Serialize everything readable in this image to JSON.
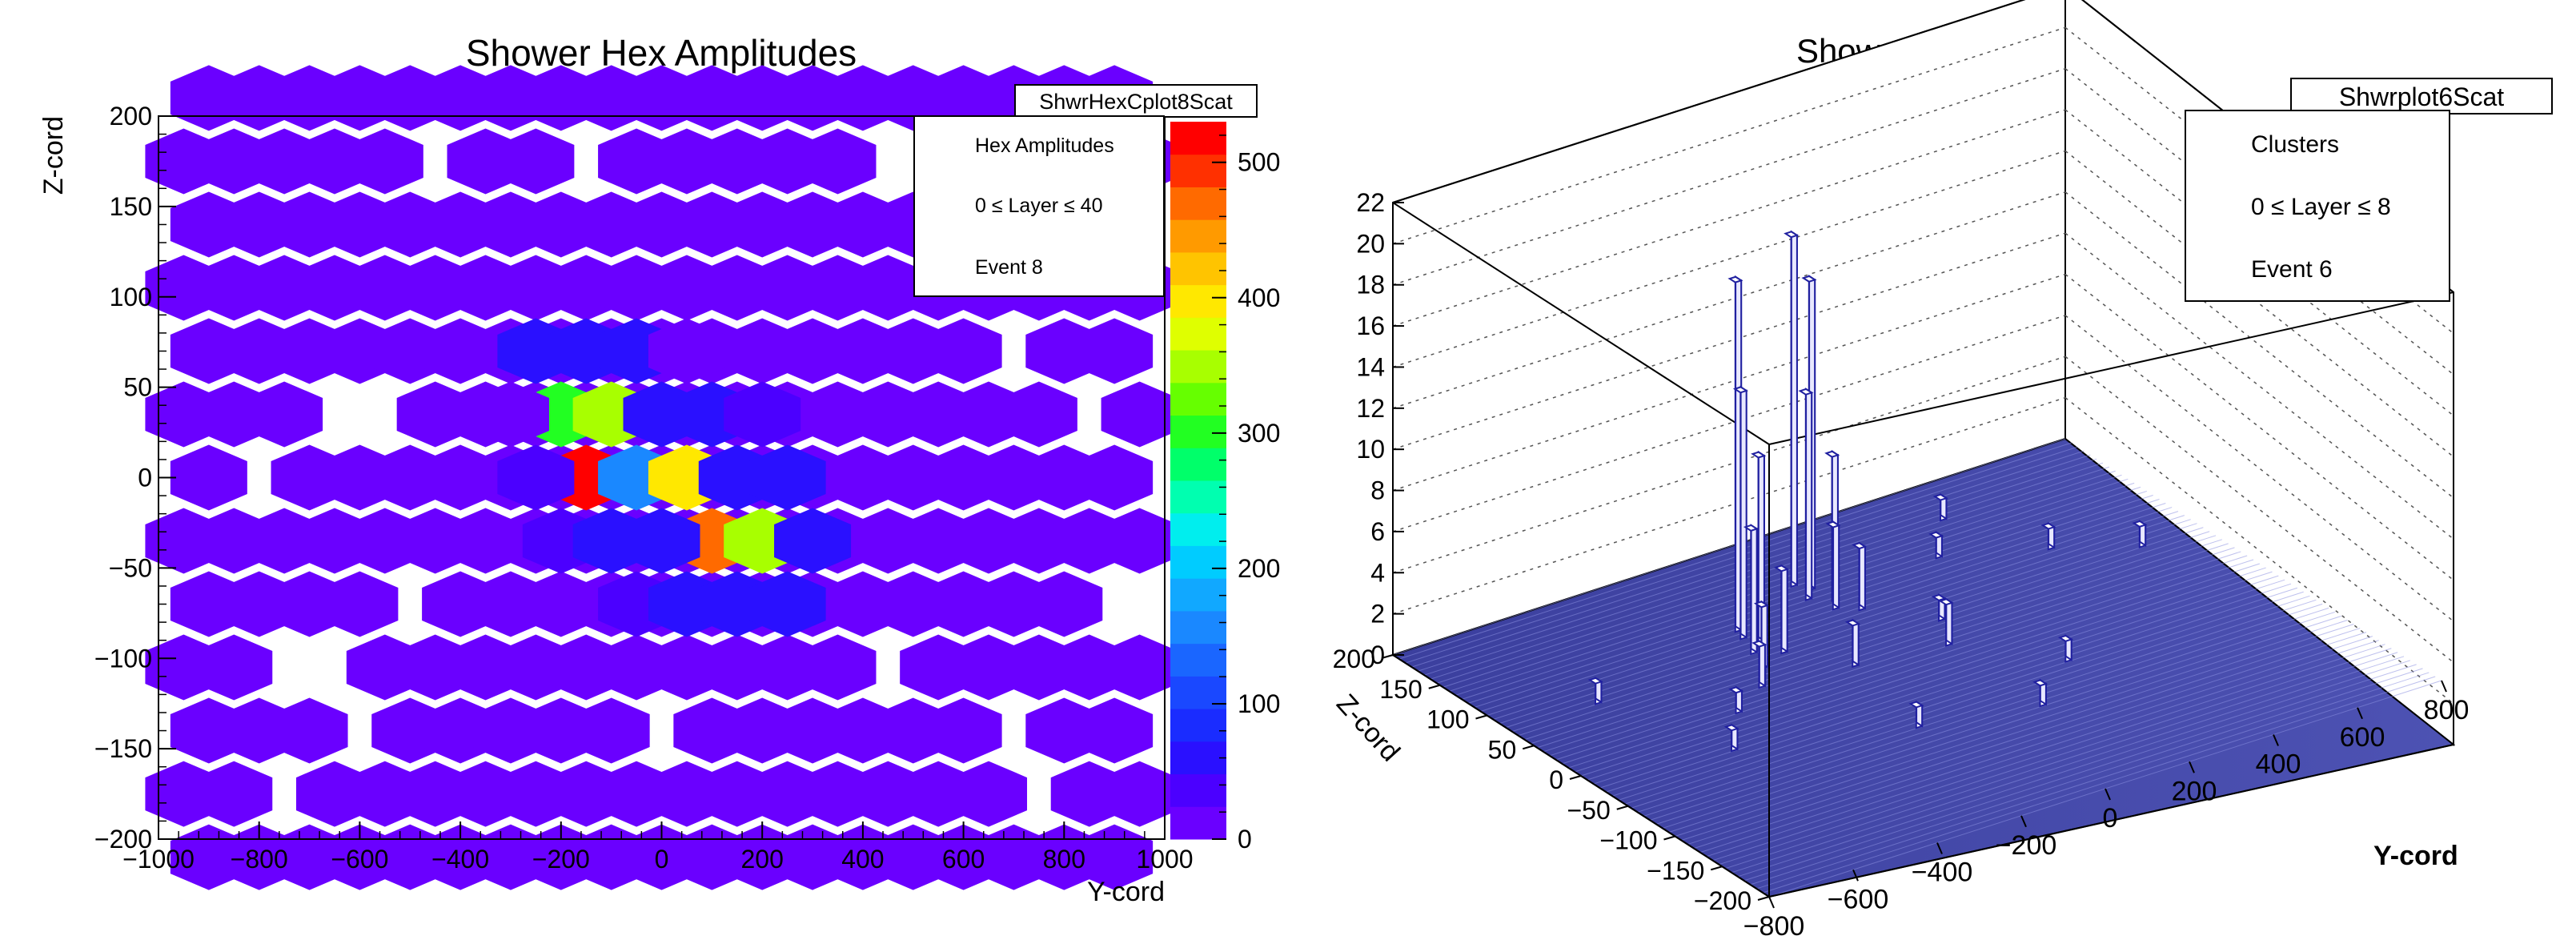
{
  "chart_data": [
    {
      "type": "heatmap",
      "title": "Shower Hex Amplitudes",
      "xlabel": "Y-cord",
      "ylabel": "Z-cord",
      "xlim": [
        -1000,
        1000
      ],
      "ylim": [
        -200,
        200
      ],
      "zlim": [
        0,
        530
      ],
      "x_ticks": [
        -1000,
        -800,
        -600,
        -400,
        -200,
        0,
        200,
        400,
        600,
        800,
        1000
      ],
      "y_ticks": [
        -200,
        -150,
        -100,
        -50,
        0,
        50,
        100,
        150,
        200
      ],
      "z_ticks": [
        0,
        100,
        200,
        300,
        400,
        500
      ],
      "hist_name": "ShwrHexCplot8Scat",
      "stats_lines": [
        "Hex Amplitudes",
        "0 ≤ Layer ≤ 40",
        "Event 8"
      ],
      "cells": [
        {
          "y": -200,
          "z": 35,
          "amp": 300
        },
        {
          "y": -100,
          "z": 35,
          "amp": 360
        },
        {
          "y": -150,
          "z": 0,
          "amp": 520
        },
        {
          "y": -50,
          "z": 0,
          "amp": 160
        },
        {
          "y": 50,
          "z": 0,
          "amp": 400
        },
        {
          "y": 100,
          "z": -35,
          "amp": 460
        },
        {
          "y": 200,
          "z": -35,
          "amp": 350
        },
        {
          "y": -250,
          "z": 70,
          "amp": 60
        },
        {
          "y": -150,
          "z": 70,
          "amp": 55
        },
        {
          "y": -50,
          "z": 70,
          "amp": 50
        },
        {
          "y": 50,
          "z": 70,
          "amp": 15
        },
        {
          "y": 0,
          "z": 35,
          "amp": 65
        },
        {
          "y": 100,
          "z": 35,
          "amp": 60
        },
        {
          "y": 200,
          "z": 35,
          "amp": 40
        },
        {
          "y": -300,
          "z": 35,
          "amp": 20
        },
        {
          "y": -250,
          "z": 0,
          "amp": 45
        },
        {
          "y": 150,
          "z": 0,
          "amp": 60
        },
        {
          "y": 250,
          "z": 0,
          "amp": 55
        },
        {
          "y": -200,
          "z": -35,
          "amp": 40
        },
        {
          "y": -100,
          "z": -35,
          "amp": 60
        },
        {
          "y": 0,
          "z": -35,
          "amp": 70
        },
        {
          "y": 300,
          "z": -35,
          "amp": 55
        },
        {
          "y": -50,
          "z": -70,
          "amp": 45
        },
        {
          "y": 50,
          "z": -70,
          "amp": 60
        },
        {
          "y": 150,
          "z": -70,
          "amp": 55
        },
        {
          "y": 250,
          "z": -70,
          "amp": 50
        }
      ]
    },
    {
      "type": "lego3d",
      "title": "Shower Clusters",
      "xlabel": "Y-cord",
      "ylabel": "Z-cord",
      "zlabel": "",
      "xlim": [
        -800,
        800
      ],
      "ylim": [
        -200,
        200
      ],
      "zlim": [
        0,
        22
      ],
      "x_ticks": [
        -800,
        -600,
        -400,
        -200,
        0,
        200,
        400,
        600,
        800
      ],
      "y_ticks": [
        -200,
        -150,
        -100,
        -50,
        0,
        50,
        100,
        150,
        200
      ],
      "z_ticks": [
        0,
        2,
        4,
        6,
        8,
        10,
        12,
        14,
        16,
        18,
        20,
        22
      ],
      "hist_name": "Shwrplot6Scat",
      "stats_lines": [
        "Clusters",
        "0 ≤ Layer ≤ 8",
        "Event 6"
      ],
      "bars": [
        {
          "y": -200,
          "z": 110,
          "h": 17
        },
        {
          "y": -210,
          "z": 100,
          "h": 12
        },
        {
          "y": -190,
          "z": 90,
          "h": 9
        },
        {
          "y": -230,
          "z": 80,
          "h": 6
        },
        {
          "y": -180,
          "z": 70,
          "h": 4
        },
        {
          "y": -250,
          "z": 60,
          "h": 3
        },
        {
          "y": 0,
          "z": 140,
          "h": 17
        },
        {
          "y": 20,
          "z": 130,
          "h": 15
        },
        {
          "y": -10,
          "z": 120,
          "h": 10
        },
        {
          "y": 30,
          "z": 110,
          "h": 7
        },
        {
          "y": 10,
          "z": 100,
          "h": 4
        },
        {
          "y": 50,
          "z": 90,
          "h": 3
        },
        {
          "y": -300,
          "z": 40,
          "h": 2
        },
        {
          "y": -100,
          "z": 30,
          "h": 2
        },
        {
          "y": 100,
          "z": 20,
          "h": 2
        },
        {
          "y": 150,
          "z": 50,
          "h": 1
        },
        {
          "y": -400,
          "z": 20,
          "h": 1
        },
        {
          "y": 300,
          "z": 120,
          "h": 1
        },
        {
          "y": 500,
          "z": 90,
          "h": 1
        },
        {
          "y": 650,
          "z": 60,
          "h": 1
        },
        {
          "y": -600,
          "z": 80,
          "h": 1
        },
        {
          "y": -500,
          "z": -20,
          "h": 1
        },
        {
          "y": 250,
          "z": -40,
          "h": 1
        },
        {
          "y": -150,
          "z": -60,
          "h": 1
        },
        {
          "y": 100,
          "z": -80,
          "h": 1
        },
        {
          "y": 400,
          "z": 160,
          "h": 1
        }
      ]
    }
  ]
}
